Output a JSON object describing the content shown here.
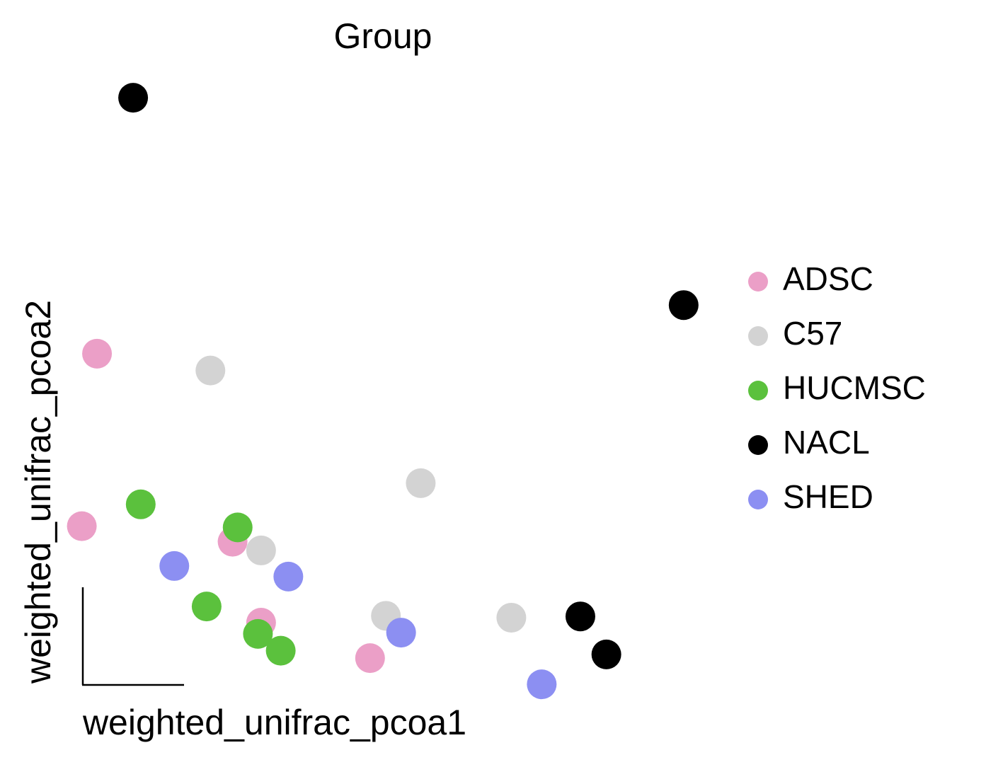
{
  "chart_data": {
    "type": "scatter",
    "title": "Group",
    "x_label": "weighted_unifrac_pcoa1",
    "y_label": "weighted_unifrac_pcoa2",
    "xlim": [
      0,
      10
    ],
    "ylim": [
      0,
      10
    ],
    "series": [
      {
        "name": "ADSC",
        "color": "#eb9fc7",
        "x": [
          0.47,
          0.23,
          2.61,
          3.06,
          4.78
        ],
        "values": [
          5.57,
          2.8,
          2.55,
          1.25,
          0.68
        ]
      },
      {
        "name": "C57",
        "color": "#d3d3d3",
        "x": [
          2.26,
          5.58,
          3.06,
          5.03,
          7.01
        ],
        "values": [
          5.3,
          3.49,
          2.41,
          1.36,
          1.33
        ]
      },
      {
        "name": "HUCMSC",
        "color": "#5bc13d",
        "x": [
          1.16,
          2.69,
          2.2,
          3.01,
          3.37
        ],
        "values": [
          3.15,
          2.78,
          1.51,
          1.07,
          0.8
        ]
      },
      {
        "name": "NACL",
        "color": "#000000",
        "x": [
          1.04,
          9.73,
          8.1,
          8.51
        ],
        "values": [
          9.68,
          6.35,
          1.35,
          0.74
        ]
      },
      {
        "name": "SHED",
        "color": "#8c8ff2",
        "x": [
          1.69,
          3.49,
          5.27,
          7.49
        ],
        "values": [
          2.16,
          1.99,
          1.09,
          0.26
        ]
      }
    ]
  }
}
